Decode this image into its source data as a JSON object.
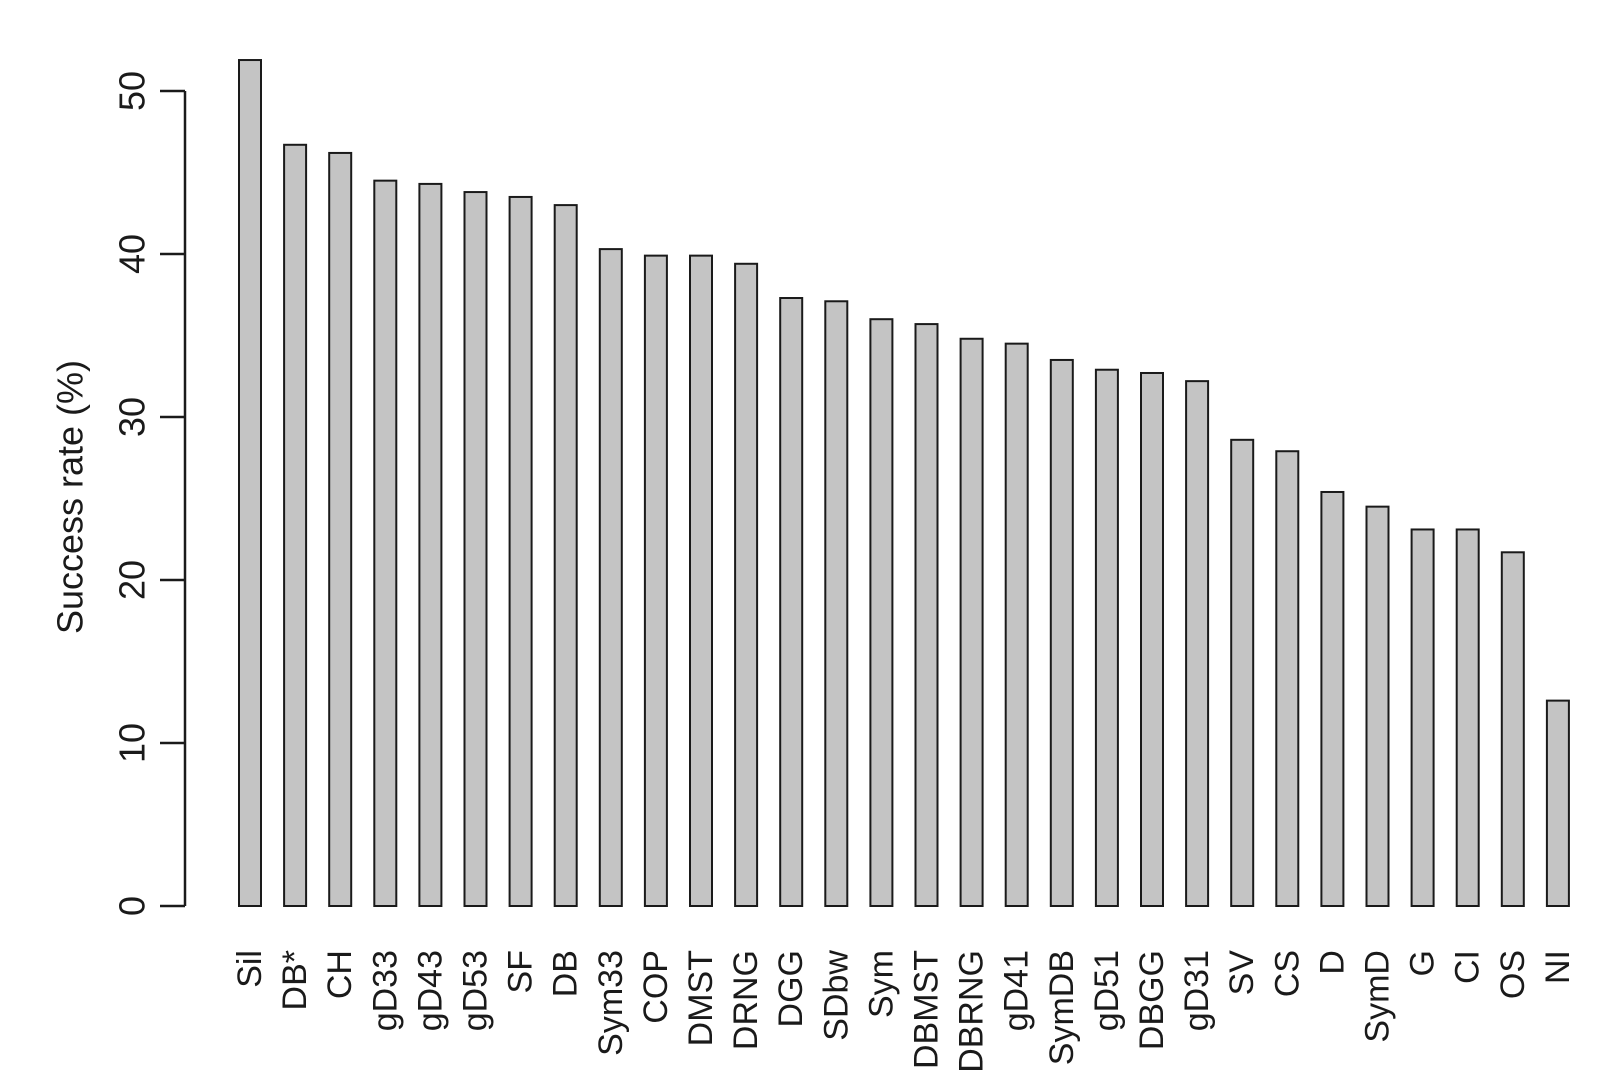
{
  "chart_data": {
    "type": "bar",
    "title": "",
    "xlabel": "",
    "ylabel": "Success rate (%)",
    "ylim": [
      0,
      52
    ],
    "yticks": [
      0,
      10,
      20,
      30,
      40,
      50
    ],
    "grid": false,
    "legend": "none",
    "bar_color": "#c4c4c4",
    "bar_stroke": "#1a1a1a",
    "categories": [
      "Sil",
      "DB*",
      "CH",
      "gD33",
      "gD43",
      "gD53",
      "SF",
      "DB",
      "Sym33",
      "COP",
      "DMST",
      "DRNG",
      "DGG",
      "SDbw",
      "Sym",
      "DBMST",
      "DBRNG",
      "gD41",
      "SymDB",
      "gD51",
      "DBGG",
      "gD31",
      "SV",
      "CS",
      "D",
      "SymD",
      "G",
      "CI",
      "OS",
      "NI"
    ],
    "values": [
      51.9,
      46.7,
      46.2,
      44.5,
      44.3,
      43.8,
      43.5,
      43.0,
      40.3,
      39.9,
      39.9,
      39.4,
      37.3,
      37.1,
      36.0,
      35.7,
      34.8,
      34.5,
      33.5,
      32.9,
      32.7,
      32.2,
      28.6,
      27.9,
      25.4,
      24.5,
      23.1,
      23.1,
      21.7,
      12.6
    ]
  }
}
